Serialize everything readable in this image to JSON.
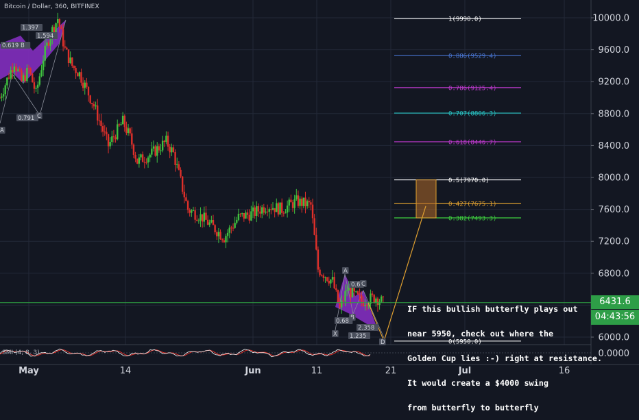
{
  "header": {
    "title": "Bitcoin / Dollar, 360, BITFINEX"
  },
  "annotation": {
    "lines": [
      "IF this bullish butterfly plays out",
      "near 5950, check out where the",
      "Golden Cup lies :-) right at resistance.",
      "It would create a $4000 swing",
      "from butterfly to butterfly"
    ]
  },
  "price_tags": {
    "last_price": "6431.6",
    "countdown": "04:43:56"
  },
  "indicator": {
    "label": "SMI (4, 8, 3)",
    "value": "0.0000"
  },
  "pattern_labels": {
    "left": [
      "1.397",
      "1.594",
      "0.619 B",
      "0.791",
      "C",
      "A"
    ],
    "right": [
      "A",
      "0.6",
      "C",
      "B",
      "0.68",
      "2.358",
      "X",
      "1.235",
      "D"
    ]
  },
  "chart_data": {
    "type": "candlestick",
    "title": "Bitcoin / Dollar, 360, BITFINEX",
    "y_ticks": [
      "10000.0",
      "9600.0",
      "9200.0",
      "8800.0",
      "8400.0",
      "8000.0",
      "7600.0",
      "7200.0",
      "6800.0",
      "6400.0",
      "6000.0"
    ],
    "y_range": [
      5820,
      10120
    ],
    "x_ticks": [
      "May",
      "14",
      "Jun",
      "11",
      "21",
      "Jul",
      "16"
    ],
    "price_path": [
      [
        "Apr 27",
        9000
      ],
      [
        "Apr 29",
        9450
      ],
      [
        "Apr 30",
        9200
      ],
      [
        "May 1",
        9350
      ],
      [
        "May 2",
        9050
      ],
      [
        "May 3",
        9500
      ],
      [
        "May 4",
        9800
      ],
      [
        "May 5",
        9990
      ],
      [
        "May 6",
        9600
      ],
      [
        "May 7",
        9400
      ],
      [
        "May 8",
        9300
      ],
      [
        "May 10",
        8900
      ],
      [
        "May 12",
        8400
      ],
      [
        "May 14",
        8700
      ],
      [
        "May 15",
        8500
      ],
      [
        "May 16",
        8200
      ],
      [
        "May 18",
        8300
      ],
      [
        "May 20",
        8450
      ],
      [
        "May 21",
        8300
      ],
      [
        "May 23",
        7600
      ],
      [
        "May 25",
        7500
      ],
      [
        "May 28",
        7250
      ],
      [
        "May 30",
        7500
      ],
      [
        "Jun 1",
        7550
      ],
      [
        "Jun 3",
        7650
      ],
      [
        "Jun 5",
        7600
      ],
      [
        "Jun 7",
        7700
      ],
      [
        "Jun 9",
        7650
      ],
      [
        "Jun 10",
        6850
      ],
      [
        "Jun 12",
        6700
      ],
      [
        "Jun 13",
        6350
      ],
      [
        "Jun 14",
        6600
      ],
      [
        "Jun 16",
        6450
      ],
      [
        "Jun 18",
        6500
      ],
      [
        "Jun 19",
        6431.6
      ]
    ],
    "fib_levels": [
      {
        "label": "1(9990.0)",
        "value": 9990,
        "color": "#ffffff"
      },
      {
        "label": "0.886(9529.4)",
        "value": 9529.4,
        "color": "#4a78d6"
      },
      {
        "label": "0.786(9125.4)",
        "value": 9125.4,
        "color": "#c03ad0"
      },
      {
        "label": "0.707(8806.3)",
        "value": 8806.3,
        "color": "#27c4c4"
      },
      {
        "label": "0.618(8446.7)",
        "value": 8446.7,
        "color": "#c03ad0"
      },
      {
        "label": "0.5(7970.0)",
        "value": 7970,
        "color": "#ffffff"
      },
      {
        "label": "0.427(7675.1)",
        "value": 7675.1,
        "color": "#e0a030"
      },
      {
        "label": "0.382(7493.3)",
        "value": 7493.3,
        "color": "#3fd13f"
      },
      {
        "label": "0(5950.0)",
        "value": 5950,
        "color": "#ffffff"
      }
    ],
    "last_price": 6431.6,
    "projection": {
      "from": 5950,
      "to": 7675.1,
      "target_zone": [
        7493.3,
        7970
      ]
    },
    "colors": {
      "up": "#3fc23f",
      "down": "#e0302a",
      "pattern": "#8a2fc8",
      "projection": "#e0a030",
      "last_line": "#2ea043"
    }
  }
}
